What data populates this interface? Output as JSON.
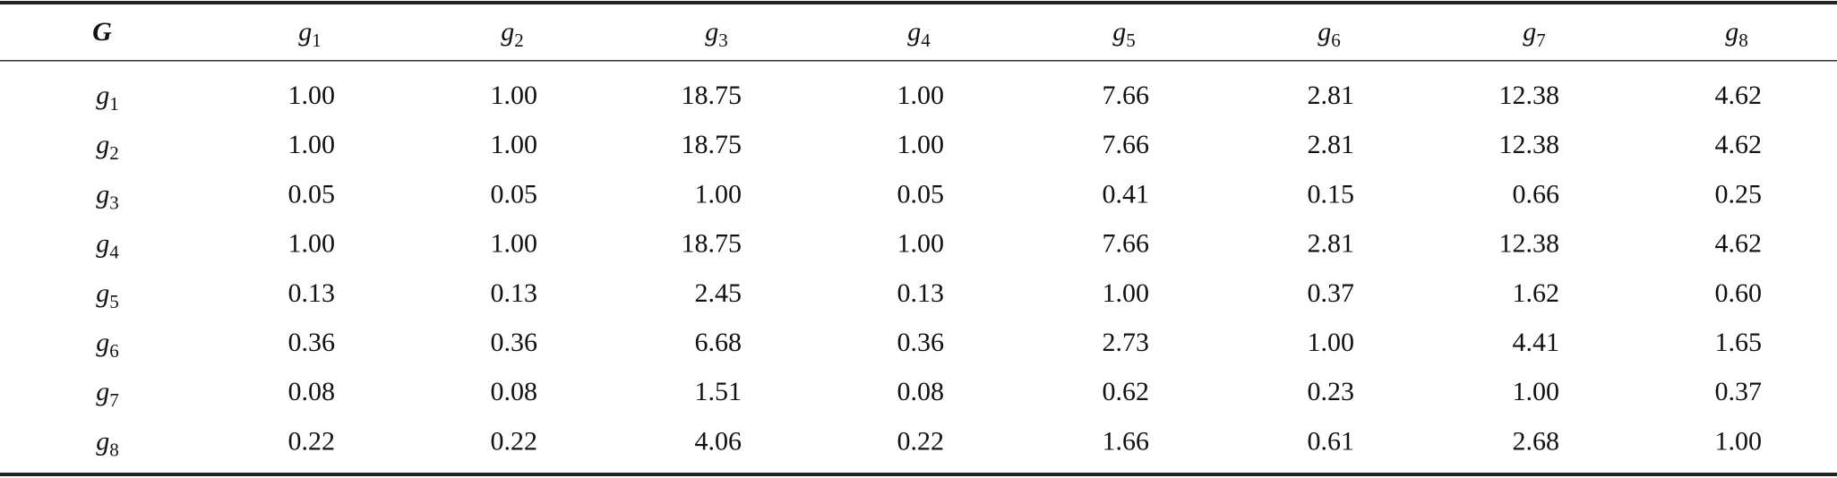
{
  "table": {
    "header": [
      {
        "letter": "G"
      },
      {
        "letter": "g",
        "sub": "1"
      },
      {
        "letter": "g",
        "sub": "2"
      },
      {
        "letter": "g",
        "sub": "3"
      },
      {
        "letter": "g",
        "sub": "4"
      },
      {
        "letter": "g",
        "sub": "5"
      },
      {
        "letter": "g",
        "sub": "6"
      },
      {
        "letter": "g",
        "sub": "7"
      },
      {
        "letter": "g",
        "sub": "8"
      }
    ],
    "rows": [
      {
        "label": {
          "letter": "g",
          "sub": "1"
        },
        "cells": [
          "1.00",
          "1.00",
          "18.75",
          "1.00",
          "7.66",
          "2.81",
          "12.38",
          "4.62"
        ]
      },
      {
        "label": {
          "letter": "g",
          "sub": "2"
        },
        "cells": [
          "1.00",
          "1.00",
          "18.75",
          "1.00",
          "7.66",
          "2.81",
          "12.38",
          "4.62"
        ]
      },
      {
        "label": {
          "letter": "g",
          "sub": "3"
        },
        "cells": [
          "0.05",
          "0.05",
          "1.00",
          "0.05",
          "0.41",
          "0.15",
          "0.66",
          "0.25"
        ]
      },
      {
        "label": {
          "letter": "g",
          "sub": "4"
        },
        "cells": [
          "1.00",
          "1.00",
          "18.75",
          "1.00",
          "7.66",
          "2.81",
          "12.38",
          "4.62"
        ]
      },
      {
        "label": {
          "letter": "g",
          "sub": "5"
        },
        "cells": [
          "0.13",
          "0.13",
          "2.45",
          "0.13",
          "1.00",
          "0.37",
          "1.62",
          "0.60"
        ]
      },
      {
        "label": {
          "letter": "g",
          "sub": "6"
        },
        "cells": [
          "0.36",
          "0.36",
          "6.68",
          "0.36",
          "2.73",
          "1.00",
          "4.41",
          "1.65"
        ]
      },
      {
        "label": {
          "letter": "g",
          "sub": "7"
        },
        "cells": [
          "0.08",
          "0.08",
          "1.51",
          "0.08",
          "0.62",
          "0.23",
          "1.00",
          "0.37"
        ]
      },
      {
        "label": {
          "letter": "g",
          "sub": "8"
        },
        "cells": [
          "0.22",
          "0.22",
          "4.06",
          "0.22",
          "1.66",
          "0.61",
          "2.68",
          "1.00"
        ]
      }
    ]
  }
}
